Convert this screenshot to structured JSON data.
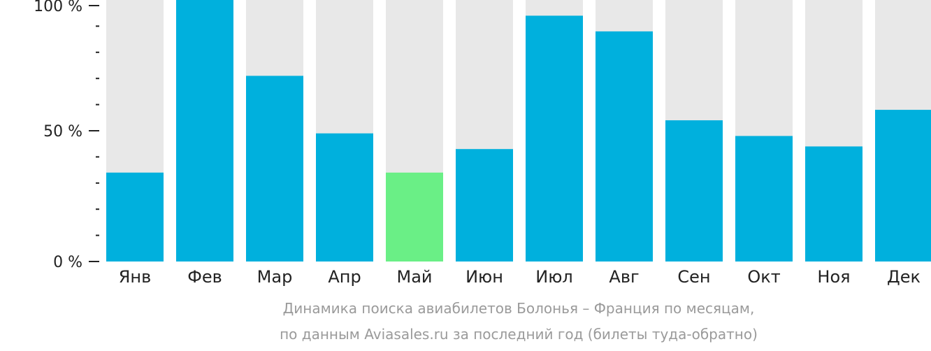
{
  "chart_data": {
    "type": "bar",
    "categories": [
      "Янв",
      "Фев",
      "Мар",
      "Апр",
      "Май",
      "Июн",
      "Июл",
      "Авг",
      "Сен",
      "Окт",
      "Ноя",
      "Дек"
    ],
    "values": [
      34,
      100,
      71,
      49,
      34,
      43,
      94,
      88,
      54,
      48,
      44,
      58
    ],
    "highlight_index": 4,
    "ylim": [
      0,
      100
    ],
    "y_ticks": [
      {
        "value": 0,
        "label": "0 %"
      },
      {
        "value": 50,
        "label": "50 %"
      },
      {
        "value": 100,
        "label": "100 %"
      }
    ],
    "colors": {
      "bar": "#00b0dd",
      "highlight": "#6aef86",
      "track": "#e8e8e8",
      "axis": "#222222",
      "caption": "#9a9a9a"
    }
  },
  "caption": {
    "line1": "Динамика поиска авиабилетов Болонья – Франция по месяцам,",
    "line2": "по данным Aviasales.ru за последний год (билеты туда-обратно)"
  }
}
